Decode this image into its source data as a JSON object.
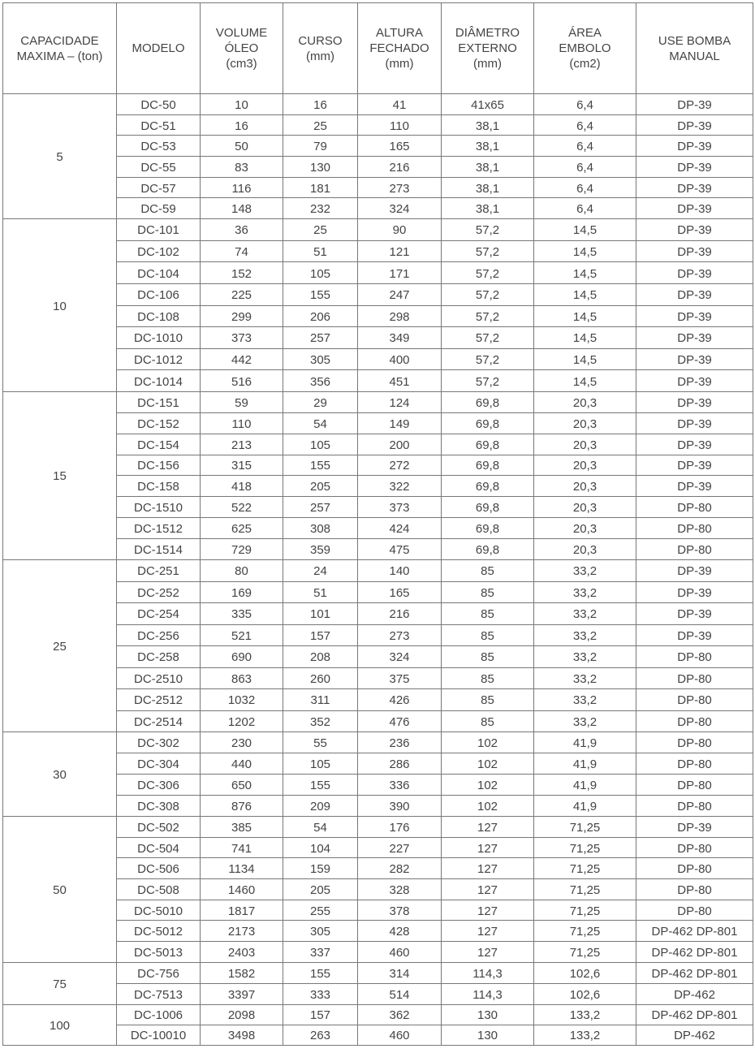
{
  "headers": [
    "CAPACIDADE\nMAXIMA – (ton)",
    "MODELO",
    "VOLUME\nÓLEO\n(cm3)",
    "CURSO\n(mm)",
    "ALTURA\nFECHADO\n(mm)",
    "DIÂMETRO\nEXTERNO\n(mm)",
    "ÁREA\nEMBOLO\n(cm2)",
    "USE BOMBA\nMANUAL"
  ],
  "groups": [
    {
      "capacity": "5",
      "rows": [
        [
          "DC-50",
          "10",
          "16",
          "41",
          "41x65",
          "6,4",
          "DP-39"
        ],
        [
          "DC-51",
          "16",
          "25",
          "110",
          "38,1",
          "6,4",
          "DP-39"
        ],
        [
          "DC-53",
          "50",
          "79",
          "165",
          "38,1",
          "6,4",
          "DP-39"
        ],
        [
          "DC-55",
          "83",
          "130",
          "216",
          "38,1",
          "6,4",
          "DP-39"
        ],
        [
          "DC-57",
          "116",
          "181",
          "273",
          "38,1",
          "6,4",
          "DP-39"
        ],
        [
          "DC-59",
          "148",
          "232",
          "324",
          "38,1",
          "6,4",
          "DP-39"
        ]
      ]
    },
    {
      "capacity": "10",
      "rows": [
        [
          "DC-101",
          "36",
          "25",
          "90",
          "57,2",
          "14,5",
          "DP-39"
        ],
        [
          "DC-102",
          "74",
          "51",
          "121",
          "57,2",
          "14,5",
          "DP-39"
        ],
        [
          "DC-104",
          "152",
          "105",
          "171",
          "57,2",
          "14,5",
          "DP-39"
        ],
        [
          "DC-106",
          "225",
          "155",
          "247",
          "57,2",
          "14,5",
          "DP-39"
        ],
        [
          "DC-108",
          "299",
          "206",
          "298",
          "57,2",
          "14,5",
          "DP-39"
        ],
        [
          "DC-1010",
          "373",
          "257",
          "349",
          "57,2",
          "14,5",
          "DP-39"
        ],
        [
          "DC-1012",
          "442",
          "305",
          "400",
          "57,2",
          "14,5",
          "DP-39"
        ],
        [
          "DC-1014",
          "516",
          "356",
          "451",
          "57,2",
          "14,5",
          "DP-39"
        ]
      ]
    },
    {
      "capacity": "15",
      "rows": [
        [
          "DC-151",
          "59",
          "29",
          "124",
          "69,8",
          "20,3",
          "DP-39"
        ],
        [
          "DC-152",
          "110",
          "54",
          "149",
          "69,8",
          "20,3",
          "DP-39"
        ],
        [
          "DC-154",
          "213",
          "105",
          "200",
          "69,8",
          "20,3",
          "DP-39"
        ],
        [
          "DC-156",
          "315",
          "155",
          "272",
          "69,8",
          "20,3",
          "DP-39"
        ],
        [
          "DC-158",
          "418",
          "205",
          "322",
          "69,8",
          "20,3",
          "DP-39"
        ],
        [
          "DC-1510",
          "522",
          "257",
          "373",
          "69,8",
          "20,3",
          "DP-80"
        ],
        [
          "DC-1512",
          "625",
          "308",
          "424",
          "69,8",
          "20,3",
          "DP-80"
        ],
        [
          "DC-1514",
          "729",
          "359",
          "475",
          "69,8",
          "20,3",
          "DP-80"
        ]
      ]
    },
    {
      "capacity": "25",
      "rows": [
        [
          "DC-251",
          "80",
          "24",
          "140",
          "85",
          "33,2",
          "DP-39"
        ],
        [
          "DC-252",
          "169",
          "51",
          "165",
          "85",
          "33,2",
          "DP-39"
        ],
        [
          "DC-254",
          "335",
          "101",
          "216",
          "85",
          "33,2",
          "DP-39"
        ],
        [
          "DC-256",
          "521",
          "157",
          "273",
          "85",
          "33,2",
          "DP-39"
        ],
        [
          "DC-258",
          "690",
          "208",
          "324",
          "85",
          "33,2",
          "DP-80"
        ],
        [
          "DC-2510",
          "863",
          "260",
          "375",
          "85",
          "33,2",
          "DP-80"
        ],
        [
          "DC-2512",
          "1032",
          "311",
          "426",
          "85",
          "33,2",
          "DP-80"
        ],
        [
          "DC-2514",
          "1202",
          "352",
          "476",
          "85",
          "33,2",
          "DP-80"
        ]
      ]
    },
    {
      "capacity": "30",
      "rows": [
        [
          "DC-302",
          "230",
          "55",
          "236",
          "102",
          "41,9",
          "DP-80"
        ],
        [
          "DC-304",
          "440",
          "105",
          "286",
          "102",
          "41,9",
          "DP-80"
        ],
        [
          "DC-306",
          "650",
          "155",
          "336",
          "102",
          "41,9",
          "DP-80"
        ],
        [
          "DC-308",
          "876",
          "209",
          "390",
          "102",
          "41,9",
          "DP-80"
        ]
      ]
    },
    {
      "capacity": "50",
      "rows": [
        [
          "DC-502",
          "385",
          "54",
          "176",
          "127",
          "71,25",
          "DP-39"
        ],
        [
          "DC-504",
          "741",
          "104",
          "227",
          "127",
          "71,25",
          "DP-80"
        ],
        [
          "DC-506",
          "1134",
          "159",
          "282",
          "127",
          "71,25",
          "DP-80"
        ],
        [
          "DC-508",
          "1460",
          "205",
          "328",
          "127",
          "71,25",
          "DP-80"
        ],
        [
          "DC-5010",
          "1817",
          "255",
          "378",
          "127",
          "71,25",
          "DP-80"
        ],
        [
          "DC-5012",
          "2173",
          "305",
          "428",
          "127",
          "71,25",
          "DP-462 DP-801"
        ],
        [
          "DC-5013",
          "2403",
          "337",
          "460",
          "127",
          "71,25",
          "DP-462 DP-801"
        ]
      ]
    },
    {
      "capacity": "75",
      "rows": [
        [
          "DC-756",
          "1582",
          "155",
          "314",
          "114,3",
          "102,6",
          "DP-462 DP-801"
        ],
        [
          "DC-7513",
          "3397",
          "333",
          "514",
          "114,3",
          "102,6",
          "DP-462"
        ]
      ]
    },
    {
      "capacity": "100",
      "rows": [
        [
          "DC-1006",
          "2098",
          "157",
          "362",
          "130",
          "133,2",
          "DP-462 DP-801"
        ],
        [
          "DC-10010",
          "3498",
          "263",
          "460",
          "130",
          "133,2",
          "DP-462"
        ]
      ]
    }
  ]
}
